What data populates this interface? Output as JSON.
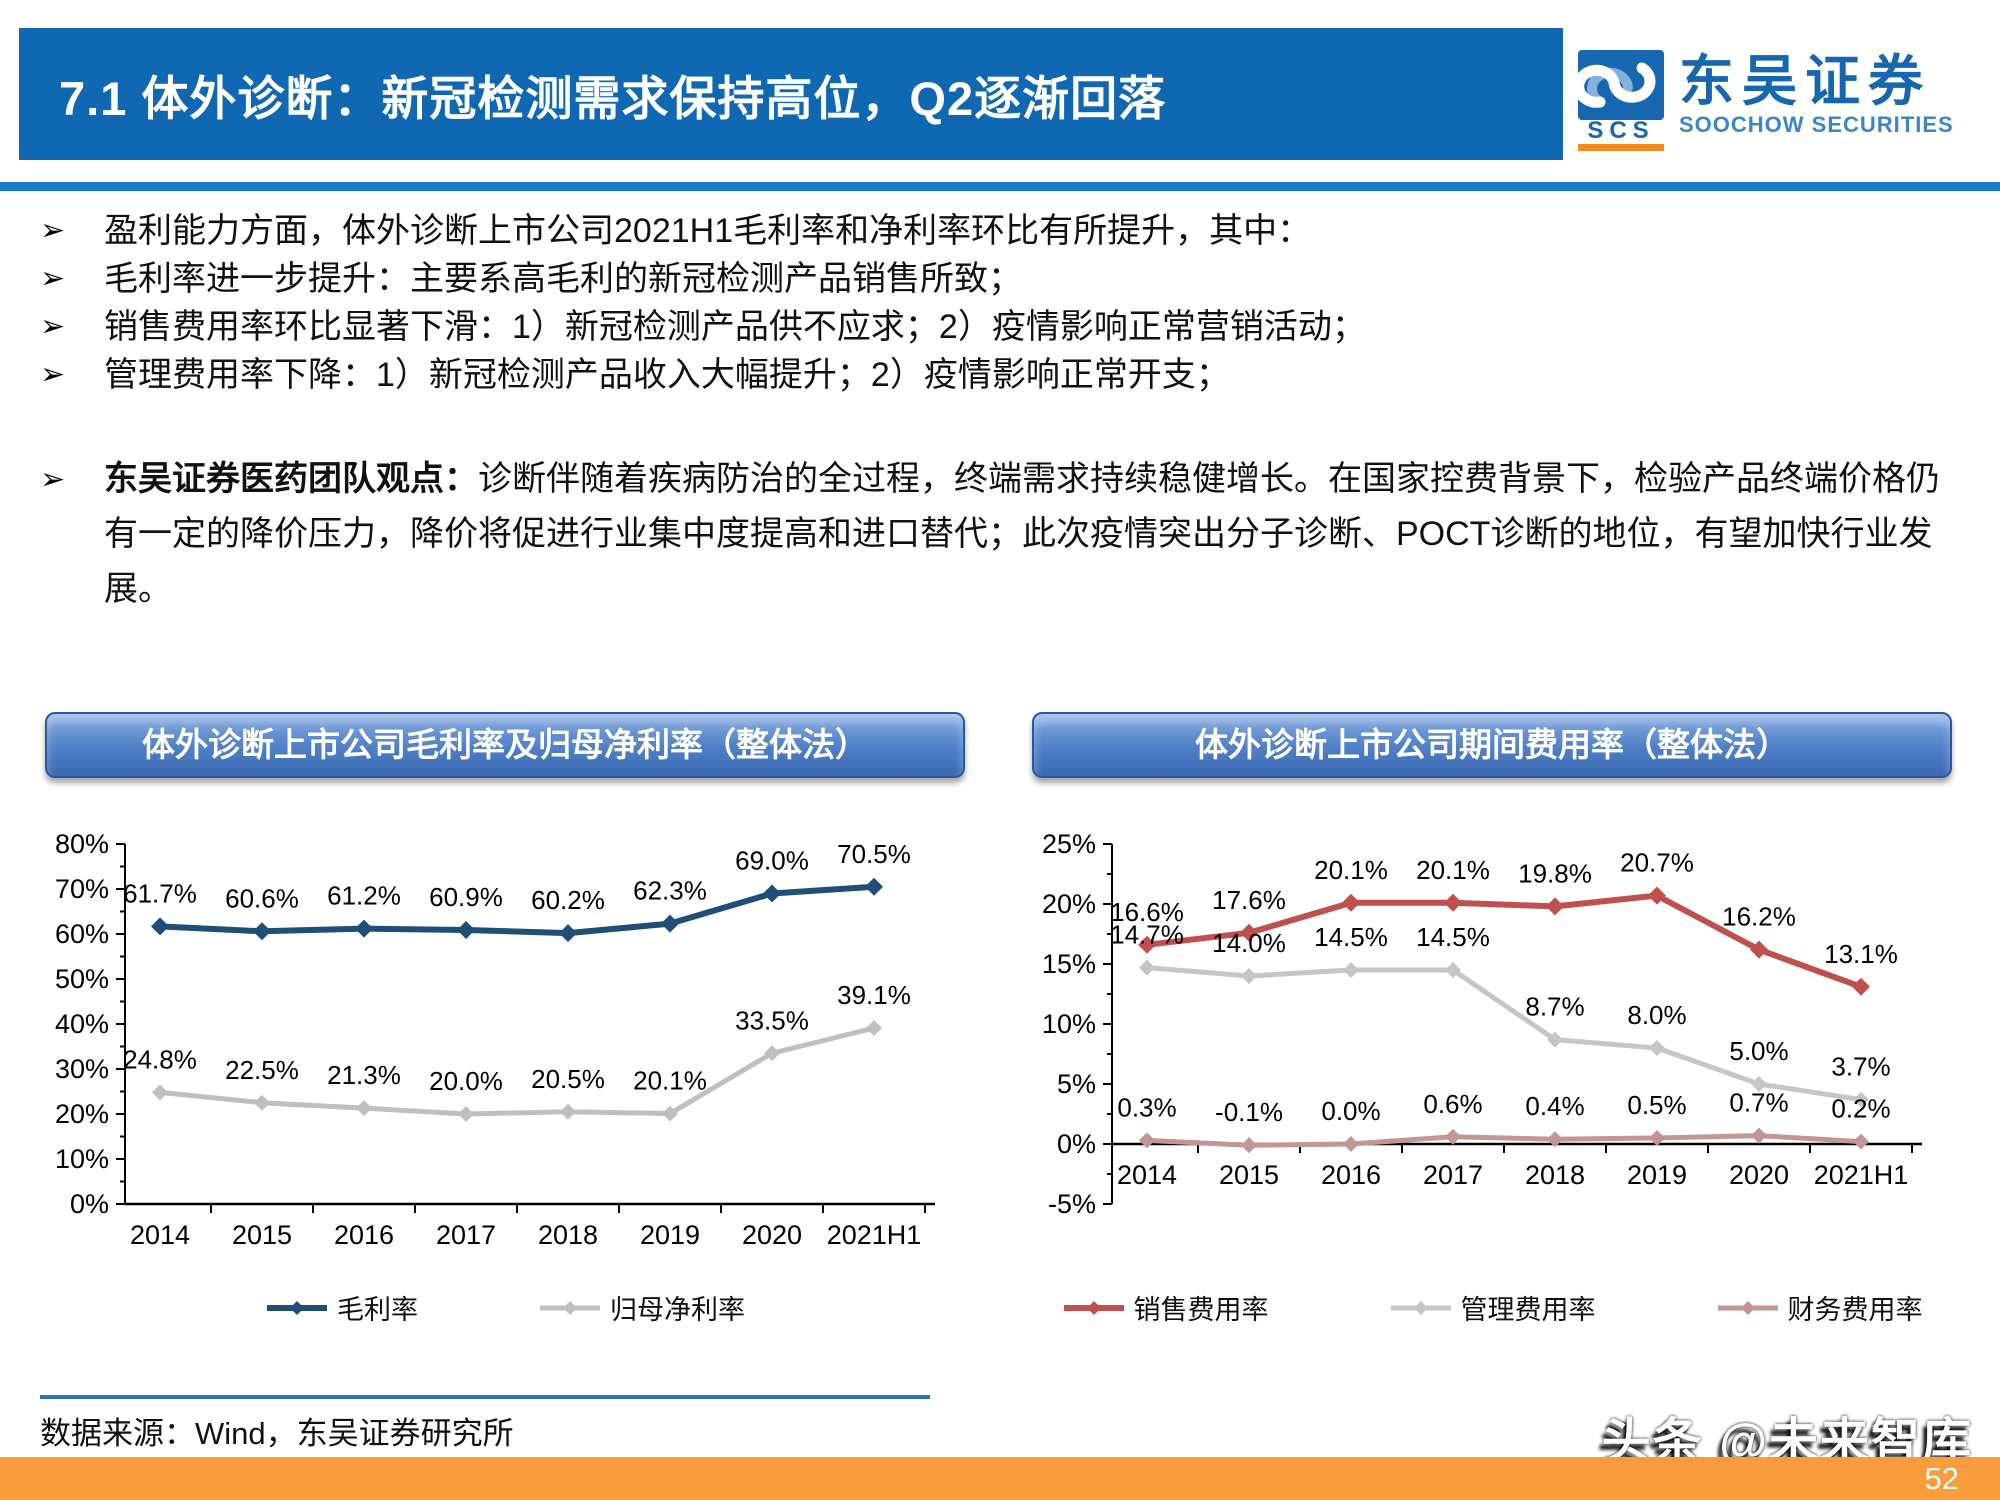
{
  "header": {
    "title": "7.1 体外诊断：新冠检测需求保持高位，Q2逐渐回落"
  },
  "logo": {
    "cn": "东吴证券",
    "en": "SOOCHOW SECURITIES",
    "abbr": "SCS"
  },
  "ui": {
    "bullet_char": "➢"
  },
  "bullets": [
    "盈利能力方面，体外诊断上市公司2021H1毛利率和净利率环比有所提升，其中：",
    "毛利率进一步提升：主要系高毛利的新冠检测产品销售所致；",
    "销售费用率环比显著下滑：1）新冠检测产品供不应求；2）疫情影响正常营销活动；",
    "管理费用率下降：1）新冠检测产品收入大幅提升；2）疫情影响正常开支；"
  ],
  "opinion": {
    "lead": "东吴证券医药团队观点：",
    "text": "诊断伴随着疾病防治的全过程，终端需求持续稳健增长。在国家控费背景下，检验产品终端价格仍有一定的降价压力，降价将促进行业集中度提高和进口替代；此次疫情突出分子诊断、POCT诊断的地位，有望加快行业发展。"
  },
  "footer": {
    "source": "数据来源：Wind，东吴证券研究所",
    "watermark": "头条 @未来智库"
  },
  "page": {
    "number": "52"
  },
  "chart_data": [
    {
      "type": "line",
      "title": "体外诊断上市公司毛利率及归母净利率（整体法）",
      "categories": [
        "2014",
        "2015",
        "2016",
        "2017",
        "2018",
        "2019",
        "2020",
        "2021H1"
      ],
      "series": [
        {
          "name": "毛利率",
          "color": "#1F4E79",
          "values": [
            61.7,
            60.6,
            61.2,
            60.9,
            60.2,
            62.3,
            69.0,
            70.5
          ]
        },
        {
          "name": "归母净利率",
          "color": "#BFBFBF",
          "values": [
            24.8,
            22.5,
            21.3,
            20.0,
            20.5,
            20.1,
            33.5,
            39.1
          ]
        }
      ],
      "xlabel": "",
      "ylabel": "",
      "ylim": [
        0,
        80
      ],
      "ytick_step": 10,
      "grid": false,
      "legend_position": "bottom"
    },
    {
      "type": "line",
      "title": "体外诊断上市公司期间费用率（整体法）",
      "categories": [
        "2014",
        "2015",
        "2016",
        "2017",
        "2018",
        "2019",
        "2020",
        "2021H1"
      ],
      "series": [
        {
          "name": "销售费用率",
          "color": "#C0504D",
          "values": [
            16.6,
            17.6,
            20.1,
            20.1,
            19.8,
            20.7,
            16.2,
            13.1
          ]
        },
        {
          "name": "管理费用率",
          "color": "#C6C6C6",
          "values": [
            14.7,
            14.0,
            14.5,
            14.5,
            8.7,
            8.0,
            5.0,
            3.7
          ]
        },
        {
          "name": "财务费用率",
          "color": "#C39694",
          "values": [
            0.3,
            -0.1,
            0.0,
            0.6,
            0.4,
            0.5,
            0.7,
            0.2
          ]
        }
      ],
      "xlabel": "",
      "ylabel": "",
      "ylim": [
        -5,
        25
      ],
      "ytick_step": 5,
      "grid": false,
      "legend_position": "bottom"
    }
  ]
}
